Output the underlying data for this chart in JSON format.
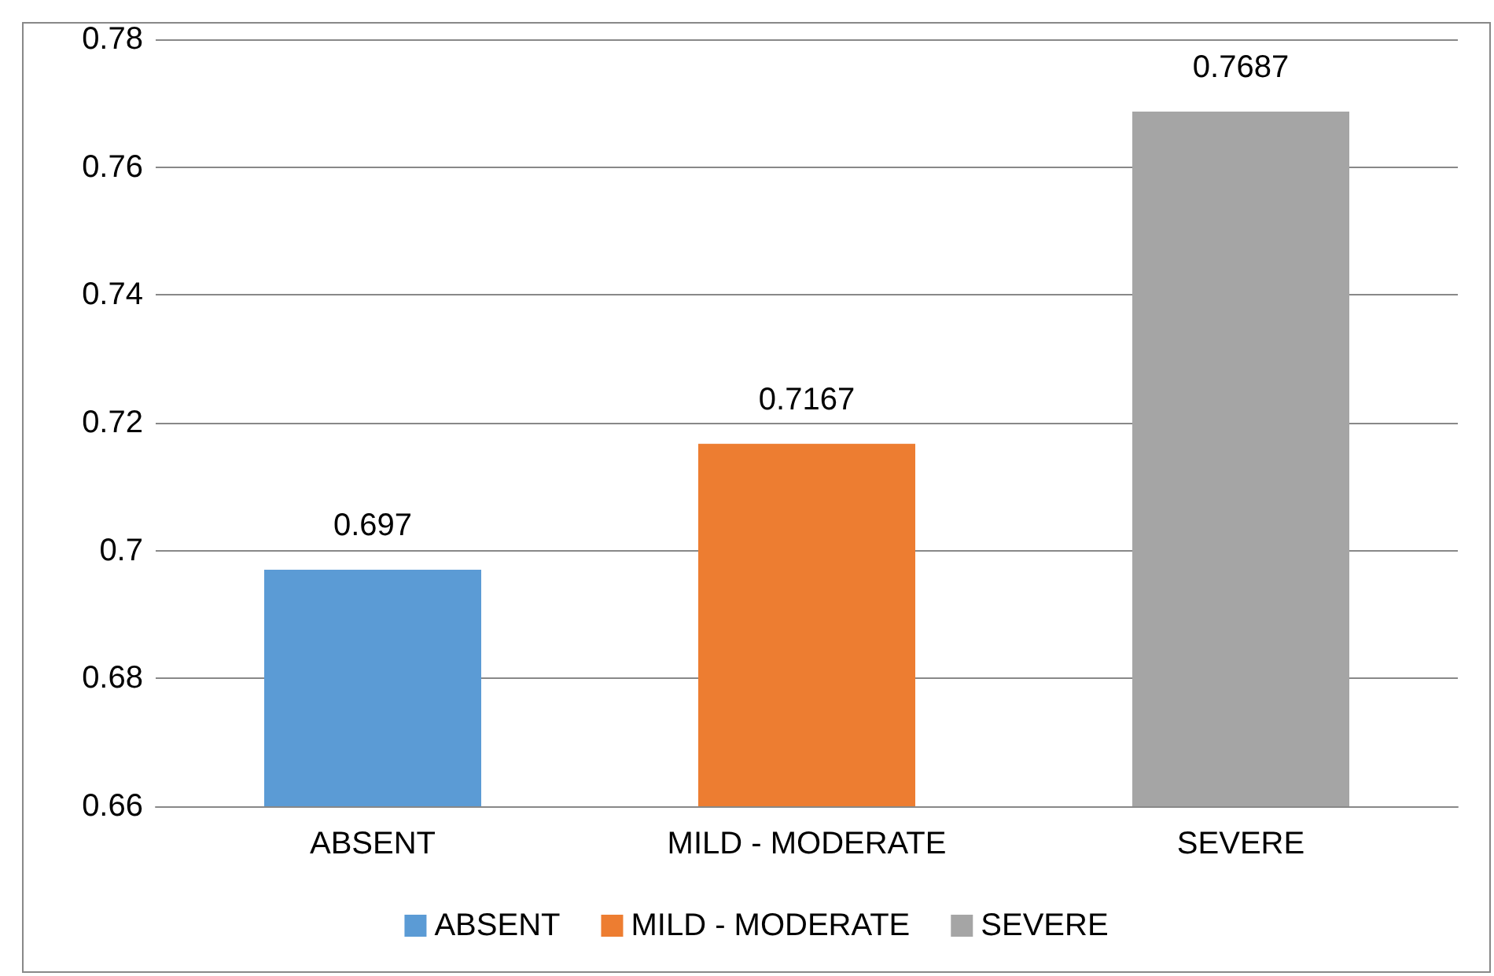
{
  "chart_data": {
    "type": "bar",
    "categories": [
      "ABSENT",
      "MILD - MODERATE",
      "SEVERE"
    ],
    "series": [
      {
        "name": "ABSENT",
        "color": "#5b9bd5",
        "values": [
          0.697,
          null,
          null
        ]
      },
      {
        "name": "MILD - MODERATE",
        "color": "#ed7d31",
        "values": [
          null,
          0.7167,
          null
        ]
      },
      {
        "name": "SEVERE",
        "color": "#a5a5a5",
        "values": [
          null,
          null,
          0.7687
        ]
      }
    ],
    "ylim": [
      0.66,
      0.78
    ],
    "yticks": [
      0.66,
      0.68,
      0.7,
      0.72,
      0.74,
      0.76,
      0.78
    ],
    "grid": "y",
    "legend": "bottom",
    "data_labels": true
  }
}
